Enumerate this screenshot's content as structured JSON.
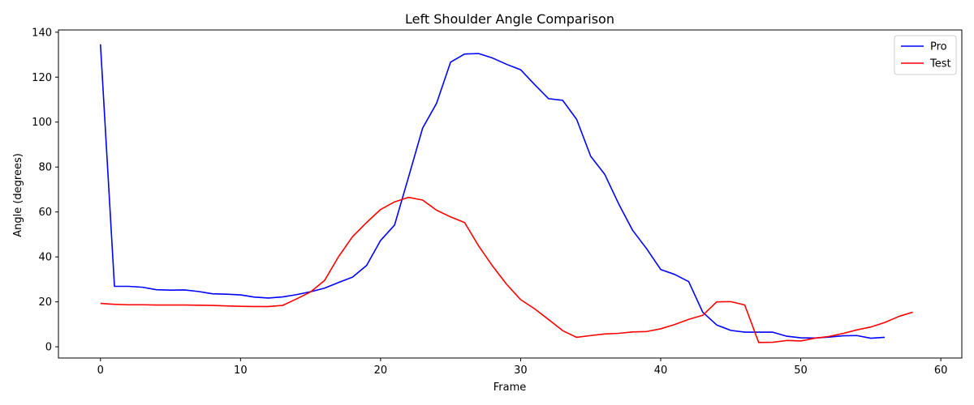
{
  "chart_data": {
    "type": "line",
    "title": "Left Shoulder Angle Comparison",
    "xlabel": "Frame",
    "ylabel": "Angle (degrees)",
    "xlim": [
      -3,
      61.5
    ],
    "ylim": [
      -5,
      141
    ],
    "xticks": [
      0,
      10,
      20,
      30,
      40,
      50,
      60
    ],
    "yticks": [
      0,
      20,
      40,
      60,
      80,
      100,
      120,
      140
    ],
    "grid": false,
    "legend": "top-right",
    "series": [
      {
        "name": "Pro",
        "color": "#0000ff",
        "x": [
          0,
          1,
          2,
          3,
          4,
          5,
          6,
          7,
          8,
          9,
          10,
          11,
          12,
          13,
          14,
          15,
          16,
          17,
          18,
          19,
          20,
          21,
          22,
          23,
          24,
          25,
          26,
          27,
          28,
          29,
          30,
          31,
          32,
          33,
          34,
          35,
          36,
          37,
          38,
          39,
          40,
          41,
          42,
          43,
          44,
          45,
          46,
          47,
          48,
          49,
          50,
          51,
          52,
          53,
          54,
          55,
          56
        ],
        "y": [
          134.6,
          26.9,
          26.9,
          26.5,
          25.4,
          25.2,
          25.3,
          24.6,
          23.6,
          23.4,
          23.1,
          22.1,
          21.7,
          22.2,
          23.2,
          24.5,
          26.1,
          28.6,
          31.0,
          36.2,
          47.3,
          54.2,
          75.6,
          97.3,
          108.4,
          126.7,
          130.3,
          130.5,
          128.5,
          125.7,
          123.3,
          116.7,
          110.4,
          109.7,
          101.2,
          84.8,
          76.8,
          63.6,
          51.8,
          43.6,
          34.4,
          32.2,
          29.0,
          15.4,
          9.7,
          7.3,
          6.5,
          6.5,
          6.5,
          4.7,
          4.0,
          3.9,
          4.3,
          4.9,
          5.0,
          3.8,
          4.2
        ]
      },
      {
        "name": "Test",
        "color": "#ff0000",
        "x": [
          0,
          1,
          2,
          3,
          4,
          5,
          6,
          7,
          8,
          9,
          10,
          11,
          12,
          13,
          14,
          15,
          16,
          17,
          18,
          19,
          20,
          21,
          22,
          23,
          24,
          25,
          26,
          27,
          28,
          29,
          30,
          31,
          32,
          33,
          34,
          35,
          36,
          37,
          38,
          39,
          40,
          41,
          42,
          43,
          44,
          45,
          46,
          47,
          48,
          49,
          50,
          51,
          52,
          53,
          54,
          55,
          56,
          57,
          58
        ],
        "y": [
          19.3,
          18.9,
          18.7,
          18.7,
          18.6,
          18.6,
          18.6,
          18.5,
          18.4,
          18.2,
          18.0,
          17.9,
          17.9,
          18.4,
          21.3,
          24.4,
          29.5,
          40.1,
          49.0,
          55.3,
          61.1,
          64.5,
          66.5,
          65.3,
          60.8,
          57.8,
          55.3,
          44.9,
          35.9,
          27.8,
          21.0,
          16.9,
          12.1,
          7.2,
          4.2,
          5.0,
          5.7,
          6.0,
          6.6,
          6.8,
          8.0,
          9.9,
          12.2,
          14.0,
          20.0,
          20.1,
          18.6,
          1.9,
          2.0,
          2.8,
          2.6,
          3.8,
          4.6,
          5.9,
          7.5,
          8.8,
          10.8,
          13.5,
          15.4
        ]
      }
    ]
  }
}
